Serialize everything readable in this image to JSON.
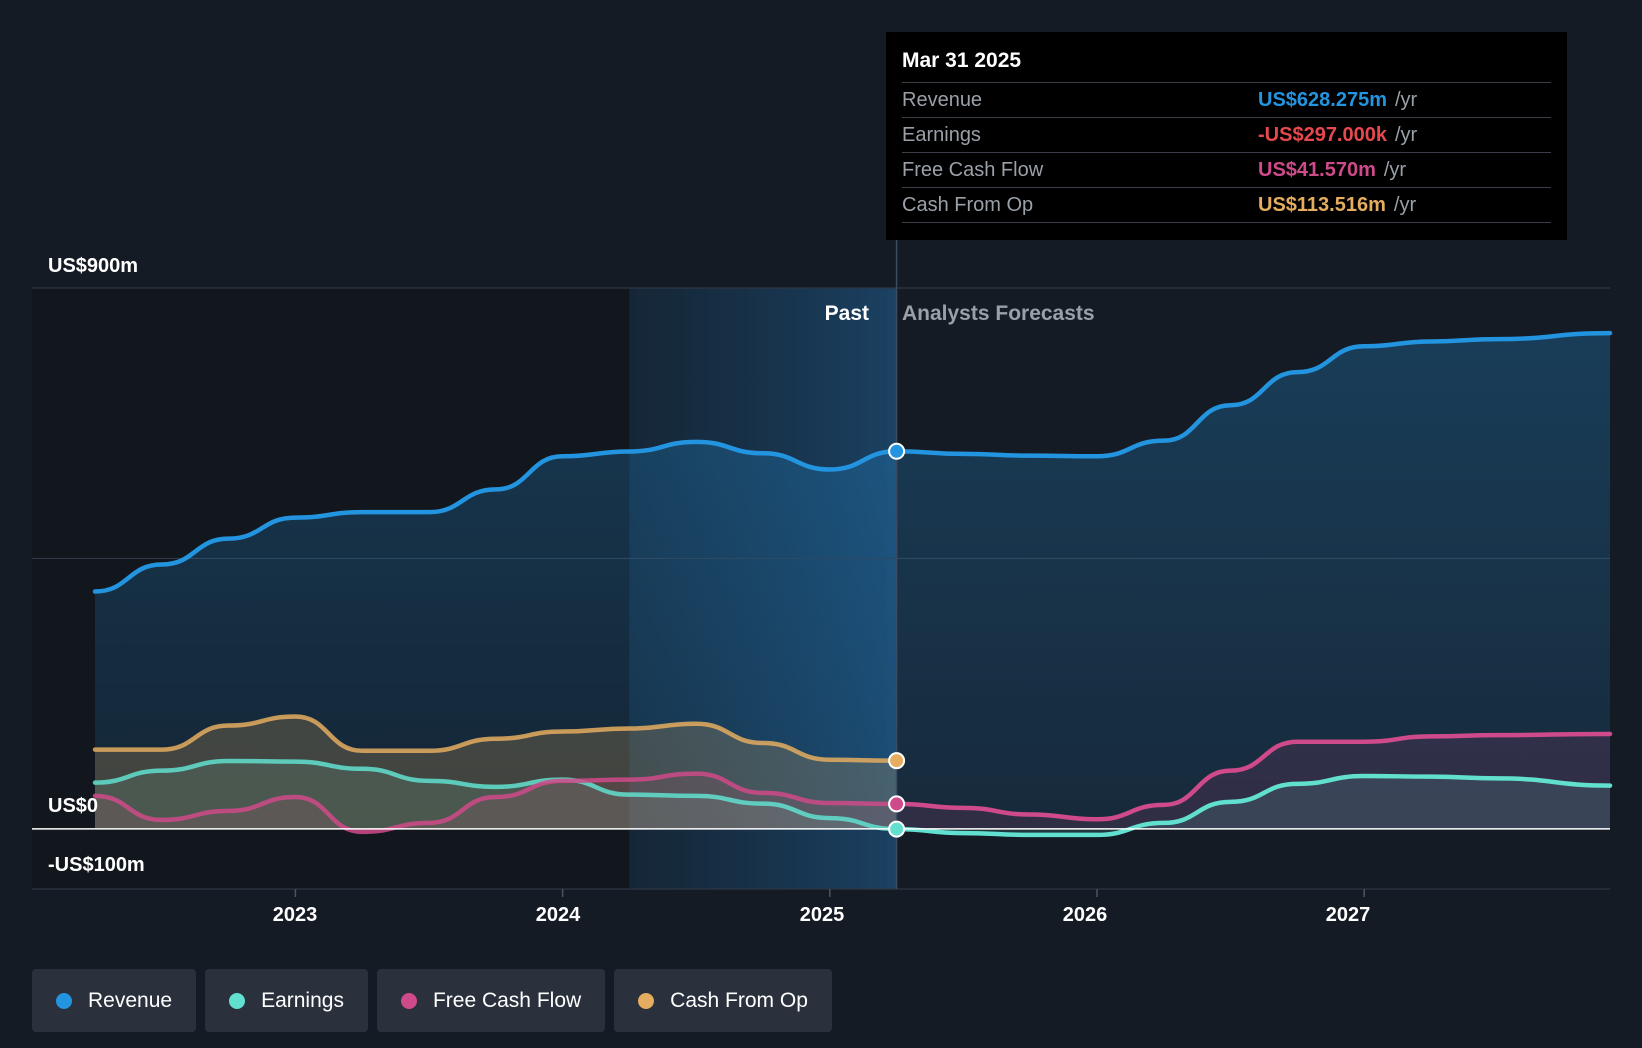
{
  "colors": {
    "revenue": "#2394df",
    "earnings": "#62e0cf",
    "fcf": "#cf4a8a",
    "cfo": "#e4ad5f",
    "negative": "#e6484e"
  },
  "tooltip": {
    "date": "Mar 31 2025",
    "unit": "/yr",
    "rows": [
      {
        "label": "Revenue",
        "value": "US$628.275m",
        "color": "#2394df"
      },
      {
        "label": "Earnings",
        "value": "-US$297.000k",
        "color": "#e6484e"
      },
      {
        "label": "Free Cash Flow",
        "value": "US$41.570m",
        "color": "#cf4a8a"
      },
      {
        "label": "Cash From Op",
        "value": "US$113.516m",
        "color": "#e4ad5f"
      }
    ]
  },
  "legend": [
    {
      "label": "Revenue",
      "color": "#2394df"
    },
    {
      "label": "Earnings",
      "color": "#62e0cf"
    },
    {
      "label": "Free Cash Flow",
      "color": "#cf4a8a"
    },
    {
      "label": "Cash From Op",
      "color": "#e4ad5f"
    }
  ],
  "chart_data": {
    "type": "area",
    "title": "",
    "xlabel": "",
    "ylabel": "",
    "ylim": [
      -100,
      900
    ],
    "xlim": [
      2022.25,
      2027.92
    ],
    "y_tick_labels": [
      {
        "value": 900,
        "label": "US$900m"
      },
      {
        "value": 0,
        "label": "US$0"
      },
      {
        "value": -100,
        "label": "-US$100m"
      }
    ],
    "x_ticks": [
      2023,
      2024,
      2025,
      2026,
      2027
    ],
    "x_tick_labels": [
      "2023",
      "2024",
      "2025",
      "2026",
      "2027"
    ],
    "divider_x": 2025.25,
    "shaded_start_x": 2024.25,
    "past_label": "Past",
    "forecast_label": "Analysts Forecasts",
    "series": [
      {
        "name": "Revenue",
        "key": "revenue",
        "past": [
          [
            2022.25,
            395
          ],
          [
            2022.5,
            440
          ],
          [
            2022.75,
            483
          ],
          [
            2023.0,
            518
          ],
          [
            2023.25,
            527
          ],
          [
            2023.5,
            527
          ],
          [
            2023.75,
            565
          ],
          [
            2024.0,
            620
          ],
          [
            2024.25,
            628
          ],
          [
            2024.5,
            644
          ],
          [
            2024.75,
            625
          ],
          [
            2025.0,
            598
          ],
          [
            2025.25,
            628.3
          ]
        ],
        "forecast": [
          [
            2025.25,
            628.3
          ],
          [
            2025.5,
            624
          ],
          [
            2025.75,
            621
          ],
          [
            2026.0,
            620
          ],
          [
            2026.25,
            646
          ],
          [
            2026.5,
            705
          ],
          [
            2026.75,
            760
          ],
          [
            2027.0,
            803
          ],
          [
            2027.25,
            811
          ],
          [
            2027.5,
            815
          ],
          [
            2027.92,
            825
          ]
        ]
      },
      {
        "name": "Earnings",
        "key": "earnings",
        "past": [
          [
            2022.25,
            77
          ],
          [
            2022.5,
            97
          ],
          [
            2022.75,
            113
          ],
          [
            2023.0,
            112
          ],
          [
            2023.25,
            100
          ],
          [
            2023.5,
            80
          ],
          [
            2023.75,
            70
          ],
          [
            2024.0,
            82
          ],
          [
            2024.25,
            57
          ],
          [
            2024.5,
            55
          ],
          [
            2024.75,
            42
          ],
          [
            2025.0,
            18
          ],
          [
            2025.25,
            -0.297
          ]
        ],
        "forecast": [
          [
            2025.25,
            -0.297
          ],
          [
            2025.5,
            -7
          ],
          [
            2025.75,
            -10
          ],
          [
            2026.0,
            -10
          ],
          [
            2026.25,
            10
          ],
          [
            2026.5,
            45
          ],
          [
            2026.75,
            75
          ],
          [
            2027.0,
            88
          ],
          [
            2027.25,
            87
          ],
          [
            2027.5,
            84
          ],
          [
            2027.92,
            72
          ]
        ]
      },
      {
        "name": "Free Cash Flow",
        "key": "fcf",
        "past": [
          [
            2022.25,
            55
          ],
          [
            2022.5,
            15
          ],
          [
            2022.75,
            30
          ],
          [
            2023.0,
            53
          ],
          [
            2023.25,
            -5
          ],
          [
            2023.5,
            10
          ],
          [
            2023.75,
            53
          ],
          [
            2024.0,
            80
          ],
          [
            2024.25,
            82
          ],
          [
            2024.5,
            92
          ],
          [
            2024.75,
            60
          ],
          [
            2025.0,
            43
          ],
          [
            2025.25,
            41.57
          ]
        ],
        "forecast": [
          [
            2025.25,
            41.57
          ],
          [
            2025.5,
            35
          ],
          [
            2025.75,
            24
          ],
          [
            2026.0,
            16
          ],
          [
            2026.25,
            40
          ],
          [
            2026.5,
            97
          ],
          [
            2026.75,
            145
          ],
          [
            2027.0,
            145
          ],
          [
            2027.25,
            154
          ],
          [
            2027.5,
            156
          ],
          [
            2027.92,
            158
          ]
        ]
      },
      {
        "name": "Cash From Op",
        "key": "cfo",
        "past": [
          [
            2022.25,
            132
          ],
          [
            2022.5,
            132
          ],
          [
            2022.75,
            172
          ],
          [
            2023.0,
            187
          ],
          [
            2023.25,
            130
          ],
          [
            2023.5,
            130
          ],
          [
            2023.75,
            150
          ],
          [
            2024.0,
            162
          ],
          [
            2024.25,
            167
          ],
          [
            2024.5,
            175
          ],
          [
            2024.75,
            143
          ],
          [
            2025.0,
            115
          ],
          [
            2025.25,
            113.5
          ]
        ],
        "forecast": []
      }
    ]
  }
}
